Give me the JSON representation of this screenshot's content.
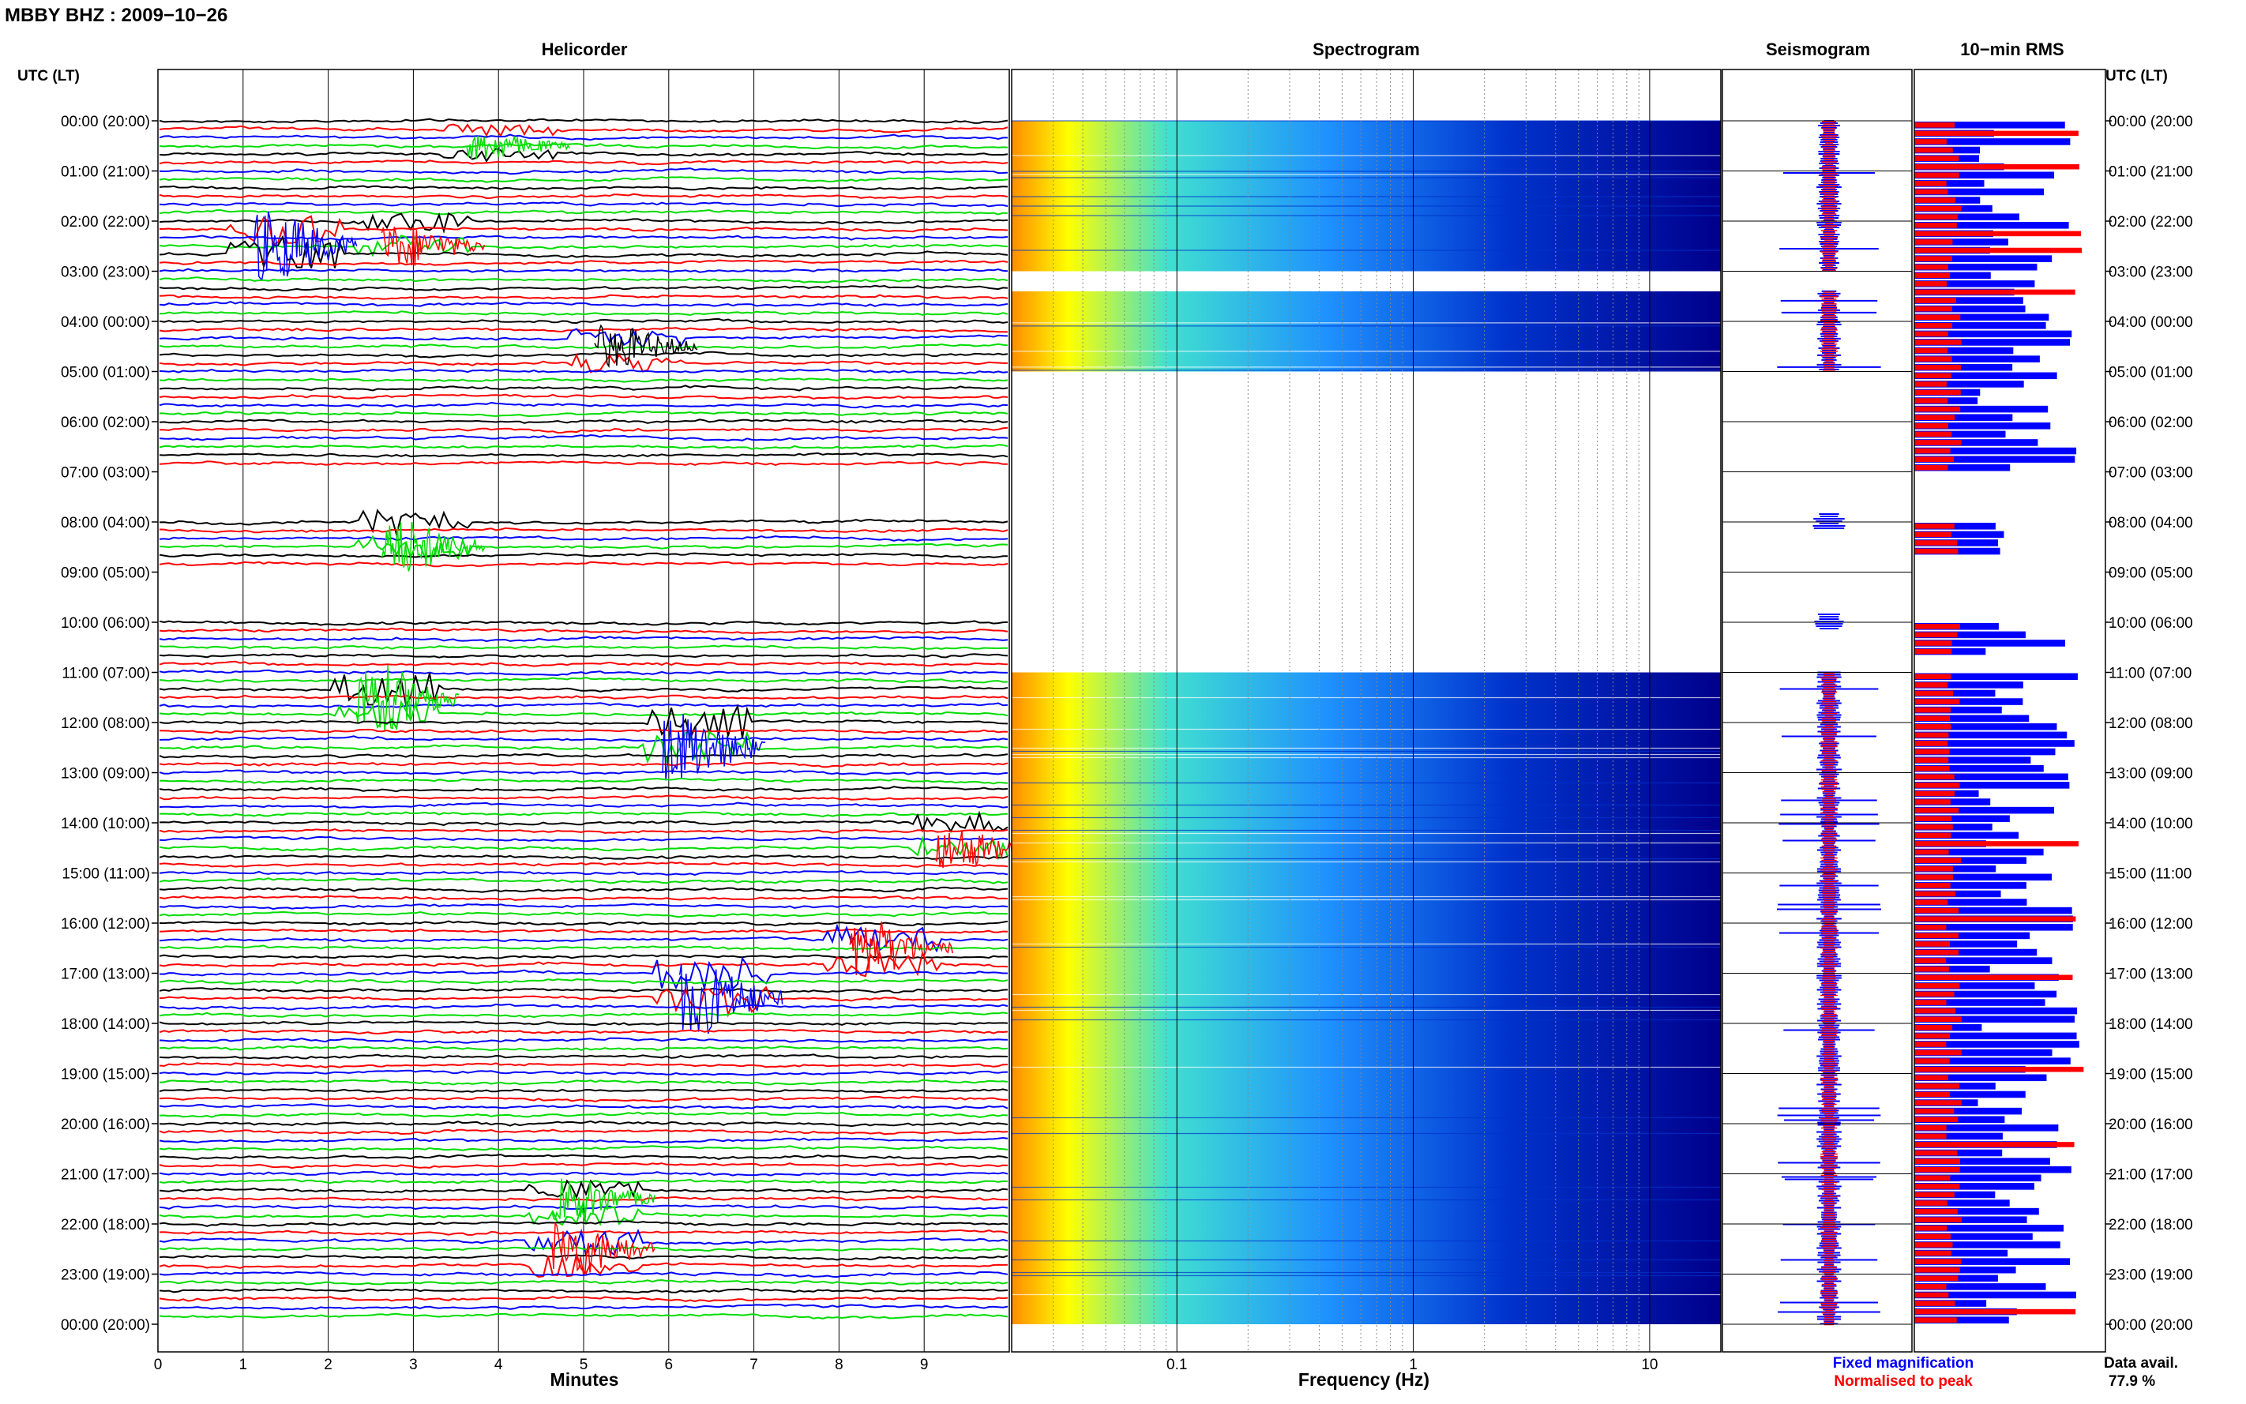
{
  "header": {
    "title": "MBBY BHZ : 2009−10−26"
  },
  "time_axis": {
    "label": "UTC (LT)",
    "hour_labels": [
      "00:00 (20:00",
      "01:00 (21:00",
      "02:00 (22:00",
      "03:00 (23:00",
      "04:00 (00:00",
      "05:00 (01:00",
      "06:00 (02:00",
      "07:00 (03:00",
      "08:00 (04:00",
      "09:00 (05:00",
      "10:00 (06:00",
      "11:00 (07:00",
      "12:00 (08:00",
      "13:00 (09:00",
      "14:00 (10:00",
      "15:00 (11:00",
      "16:00 (12:00",
      "17:00 (13:00",
      "18:00 (14:00",
      "19:00 (15:00",
      "20:00 (16:00",
      "21:00 (17:00",
      "22:00 (18:00",
      "23:00 (19:00",
      "00:00 (20:00"
    ],
    "left_labels": [
      "00:00 (20:00)",
      "01:00 (21:00)",
      "02:00 (22:00)",
      "03:00 (23:00)",
      "04:00 (00:00)",
      "05:00 (01:00)",
      "06:00 (02:00)",
      "07:00 (03:00)",
      "08:00 (04:00)",
      "09:00 (05:00)",
      "10:00 (06:00)",
      "11:00 (07:00)",
      "12:00 (08:00)",
      "13:00 (09:00)",
      "14:00 (10:00)",
      "15:00 (11:00)",
      "16:00 (12:00)",
      "17:00 (13:00)",
      "18:00 (14:00)",
      "19:00 (15:00)",
      "20:00 (16:00)",
      "21:00 (17:00)",
      "22:00 (18:00)",
      "23:00 (19:00)",
      "00:00 (20:00)"
    ]
  },
  "chart_data": [
    {
      "type": "line",
      "title": "Helicorder",
      "xlabel": "Minutes",
      "x_ticks": [
        "0",
        "1",
        "2",
        "3",
        "4",
        "5",
        "6",
        "7",
        "8",
        "9"
      ],
      "xlim": [
        0,
        10
      ],
      "rows_per_hour": 6,
      "trace_colors": [
        "#000000",
        "#ff0000",
        "#0000ff",
        "#00dd00"
      ],
      "gap_hours": [
        7,
        9
      ],
      "events": [
        {
          "hour": 0,
          "minute": 4.0,
          "amplitude": 2
        },
        {
          "hour": 2,
          "minute": 1.5,
          "amplitude": 5
        },
        {
          "hour": 2,
          "minute": 3.0,
          "amplitude": 3
        },
        {
          "hour": 4,
          "minute": 5.5,
          "amplitude": 3
        },
        {
          "hour": 8,
          "minute": 3.0,
          "amplitude": 4
        },
        {
          "hour": 11,
          "minute": 2.7,
          "amplitude": 5
        },
        {
          "hour": 12,
          "minute": 6.3,
          "amplitude": 5
        },
        {
          "hour": 14,
          "minute": 9.5,
          "amplitude": 3
        },
        {
          "hour": 16,
          "minute": 8.5,
          "amplitude": 4
        },
        {
          "hour": 17,
          "minute": 6.5,
          "amplitude": 5
        },
        {
          "hour": 21,
          "minute": 5.0,
          "amplitude": 3
        },
        {
          "hour": 22,
          "minute": 5.0,
          "amplitude": 4
        }
      ]
    },
    {
      "type": "heatmap",
      "title": "Spectrogram",
      "xlabel": "Frequency (Hz)",
      "x_scale": "log",
      "xlim": [
        0.02,
        20
      ],
      "x_ticks": [
        "0.1",
        "1",
        "10"
      ],
      "colormap": [
        "#00008b",
        "#0033cc",
        "#1e90ff",
        "#40e0d0",
        "#ffff00",
        "#ff8c00"
      ],
      "data_hours": [
        [
          0,
          3
        ],
        [
          3.4,
          5
        ],
        [
          11,
          24
        ]
      ]
    },
    {
      "type": "line",
      "title": "Seismogram",
      "series": [
        {
          "name": "Fixed magnification",
          "color": "#0000ff"
        },
        {
          "name": "Normalised to peak",
          "color": "#ff0000"
        }
      ]
    },
    {
      "type": "bar",
      "title": "10−min RMS",
      "orientation": "horizontal",
      "series": [
        {
          "color": "#0000ff"
        },
        {
          "color": "#ff0000"
        }
      ]
    }
  ],
  "footer": {
    "legend_fixed": "Fixed magnification",
    "legend_normalised": "Normalised to peak",
    "avail_label": "Data avail.",
    "avail_value": "77.9 %"
  }
}
